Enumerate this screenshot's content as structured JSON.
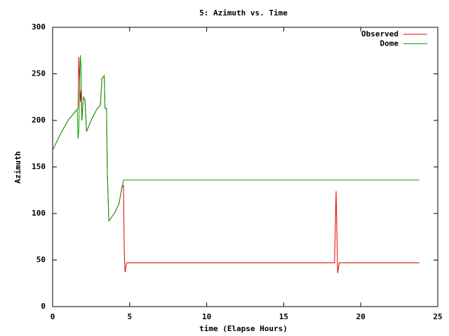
{
  "chart_data": {
    "type": "line",
    "title": "5: Azimuth vs. Time",
    "xlabel": "time (Elapse Hours)",
    "ylabel": "Azimuth",
    "x": [
      0,
      0.5,
      1.0,
      1.5,
      1.6,
      1.65,
      1.7,
      1.8,
      1.85,
      1.9,
      2.0,
      2.1,
      2.2,
      2.5,
      2.9,
      3.1,
      3.2,
      3.35,
      3.4,
      3.5,
      3.55,
      3.65,
      4.0,
      4.3,
      4.5,
      4.6,
      4.65,
      4.7,
      4.8,
      18.3,
      18.4,
      18.5,
      18.6,
      23.8
    ],
    "series": [
      {
        "name": "Observed",
        "color": "#e00000",
        "values": [
          168,
          185,
          200,
          210,
          212,
          213,
          268,
          220,
          232,
          200,
          225,
          222,
          188,
          200,
          213,
          216,
          245,
          248,
          213,
          213,
          145,
          92,
          100,
          110,
          128,
          130,
          60,
          37,
          47,
          47,
          124,
          36,
          47,
          47
        ]
      },
      {
        "name": "Dome",
        "color": "#00a000",
        "values": [
          168,
          185,
          200,
          210,
          212,
          180,
          190,
          270,
          258,
          200,
          225,
          222,
          188,
          200,
          213,
          216,
          245,
          248,
          213,
          213,
          145,
          92,
          100,
          110,
          128,
          136,
          136,
          136,
          136,
          136,
          136,
          136,
          136,
          136
        ]
      }
    ],
    "xlim": [
      0,
      25
    ],
    "xticks": [
      0,
      5,
      10,
      15,
      20,
      25
    ],
    "ylim": [
      0,
      300
    ],
    "yticks": [
      0,
      50,
      100,
      150,
      200,
      250,
      300
    ],
    "legend": "upper right"
  }
}
